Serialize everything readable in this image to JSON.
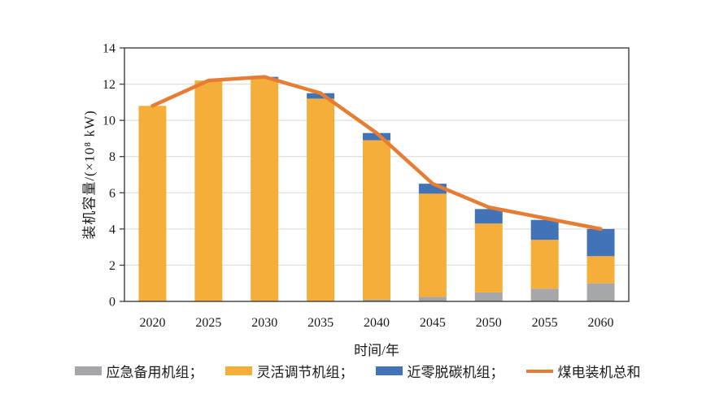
{
  "chart_data": {
    "type": "bar",
    "subtype": "stacked-bars-with-total-line",
    "title": "",
    "xlabel": "时间/年",
    "ylabel": "装机容量/(×10⁸ kW)",
    "ylim": [
      0,
      14
    ],
    "ytick_step": 2,
    "yticks": [
      0,
      2,
      4,
      6,
      8,
      10,
      12,
      14
    ],
    "grid": "horizontal",
    "legend_position": "bottom",
    "categories": [
      "2020",
      "2025",
      "2030",
      "2035",
      "2040",
      "2045",
      "2050",
      "2055",
      "2060"
    ],
    "series": [
      {
        "name": "应急备用机组",
        "kind": "bar",
        "color": "#A5A7AA",
        "values": [
          0,
          0,
          0,
          0,
          0.1,
          0.25,
          0.5,
          0.7,
          1.0
        ]
      },
      {
        "name": "灵活调节机组",
        "kind": "bar",
        "color": "#F6AE3B",
        "values": [
          10.8,
          12.2,
          12.3,
          11.2,
          8.8,
          5.7,
          3.8,
          2.7,
          1.5
        ]
      },
      {
        "name": "近零脱碳机组",
        "kind": "bar",
        "color": "#4173B6",
        "values": [
          0,
          0,
          0.1,
          0.3,
          0.4,
          0.55,
          0.8,
          1.1,
          1.5
        ]
      },
      {
        "name": "煤电装机总和",
        "kind": "line",
        "color": "#E67D35",
        "values": [
          10.8,
          12.2,
          12.4,
          11.5,
          9.3,
          6.5,
          5.2,
          4.6,
          4.0
        ]
      }
    ],
    "legend": [
      {
        "label": "应急备用机组；",
        "swatch": "bar",
        "color": "#A5A7AA"
      },
      {
        "label": "灵活调节机组；",
        "swatch": "bar",
        "color": "#F6AE3B"
      },
      {
        "label": "近零脱碳机组；",
        "swatch": "bar",
        "color": "#4173B6"
      },
      {
        "label": "煤电装机总和",
        "swatch": "line",
        "color": "#E67D35"
      }
    ],
    "colors": {
      "gridline": "#D8D8D8",
      "plot_border": "#3f3f3f",
      "tick": "#3f3f3f",
      "background": "#ffffff"
    }
  }
}
